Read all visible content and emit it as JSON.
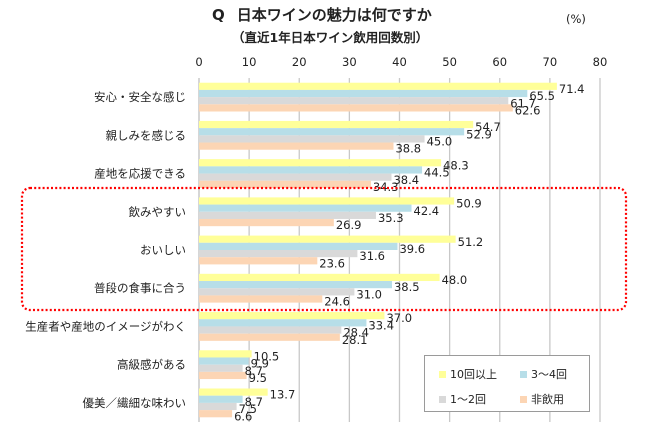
{
  "header": {
    "q_label": "Q",
    "title": "日本ワインの魅力は何ですか",
    "subtitle": "（直近1年日本ワイン飲用回数別）",
    "unit": "(%)"
  },
  "chart_data": {
    "type": "bar",
    "orientation": "horizontal",
    "title": "Q 日本ワインの魅力は何ですか",
    "subtitle": "（直近1年日本ワイン飲用回数別）",
    "xlabel": "",
    "ylabel": "",
    "unit": "(%)",
    "xlim": [
      0,
      80
    ],
    "xticks": [
      0,
      10,
      20,
      30,
      40,
      50,
      60,
      70,
      80
    ],
    "xtick_labels": [
      "0",
      "10",
      "20",
      "30",
      "40",
      "50",
      "60",
      "70",
      "80"
    ],
    "grid": true,
    "legend_position": "bottom-right",
    "categories": [
      "安心・安全な感じ",
      "親しみを感じる",
      "産地を応援できる",
      "飲みやすい",
      "おいしい",
      "普段の食事に合う",
      "生産者や産地のイメージがわく",
      "高級感がある",
      "優美／繊細な味わい"
    ],
    "series": [
      {
        "name": "10回以上",
        "color": "#FFFF99",
        "values": [
          71.4,
          54.7,
          48.3,
          50.9,
          51.2,
          48.0,
          37.0,
          10.5,
          13.7
        ]
      },
      {
        "name": "3〜4回",
        "color": "#B7DEE8",
        "values": [
          65.5,
          52.9,
          44.5,
          42.4,
          39.6,
          38.5,
          33.4,
          9.9,
          8.7
        ]
      },
      {
        "name": "1〜2回",
        "color": "#D9D9D9",
        "values": [
          61.7,
          45.0,
          38.4,
          35.3,
          31.6,
          31.0,
          28.4,
          8.7,
          7.5
        ]
      },
      {
        "name": "非飲用",
        "color": "#FCD5B4",
        "values": [
          62.6,
          38.8,
          34.3,
          26.9,
          23.6,
          24.6,
          28.1,
          9.5,
          6.6
        ]
      }
    ],
    "value_labels": [
      [
        "71.4",
        "54.7",
        "48.3",
        "50.9",
        "51.2",
        "48.0",
        "37.0",
        "10.5",
        "13.7"
      ],
      [
        "65.5",
        "52.9",
        "44.5",
        "42.4",
        "39.6",
        "38.5",
        "33.4",
        "9.9",
        "8.7"
      ],
      [
        "61.7",
        "45.0",
        "38.4",
        "35.3",
        "31.6",
        "31.0",
        "28.4",
        "8.7",
        "7.5"
      ],
      [
        "62.6",
        "38.8",
        "34.3",
        "26.9",
        "23.6",
        "24.6",
        "28.1",
        "9.5",
        "6.6"
      ]
    ],
    "highlight": {
      "style": "red dotted rounded rectangle",
      "color": "#FF0000",
      "categories": [
        "飲みやすい",
        "おいしい",
        "普段の食事に合う"
      ]
    }
  }
}
